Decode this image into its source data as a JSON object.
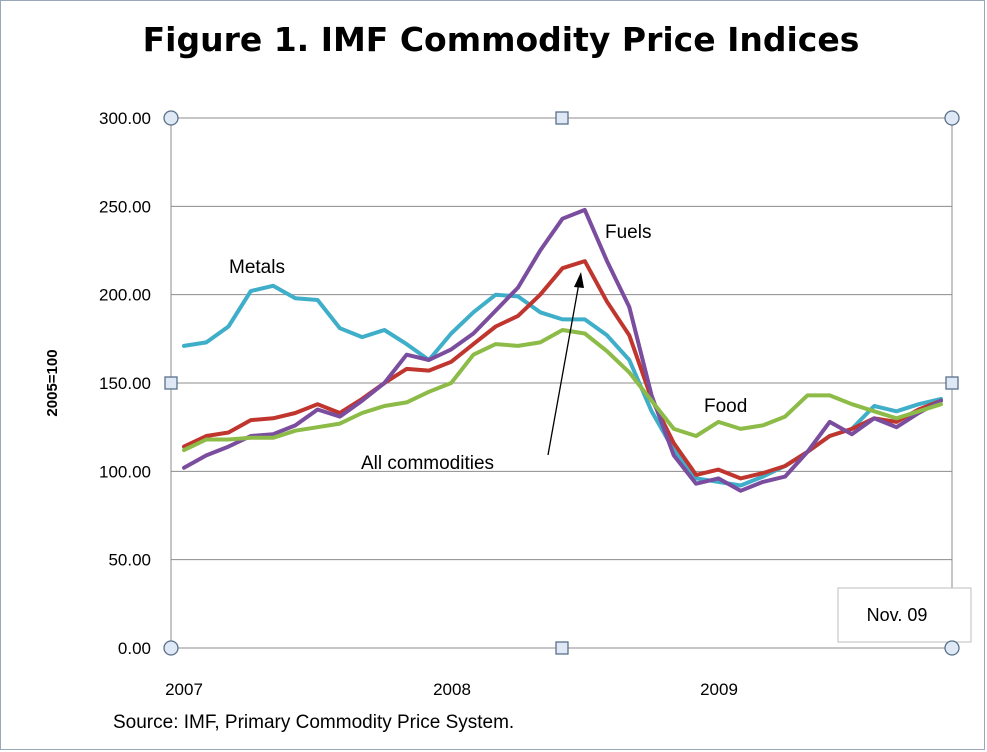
{
  "chart_data": {
    "type": "line",
    "title": "Figure 1. IMF Commodity Price Indices",
    "ylabel": "2005=100",
    "xlabel": "",
    "ylim": [
      0,
      300
    ],
    "yticks": [
      "0.00",
      "50.00",
      "100.00",
      "150.00",
      "200.00",
      "250.00",
      "300.00"
    ],
    "xticks": [
      "2007",
      "2008",
      "2009"
    ],
    "grid": "horizontal",
    "x": [
      "2007-01",
      "2007-02",
      "2007-03",
      "2007-04",
      "2007-05",
      "2007-06",
      "2007-07",
      "2007-08",
      "2007-09",
      "2007-10",
      "2007-11",
      "2007-12",
      "2008-01",
      "2008-02",
      "2008-03",
      "2008-04",
      "2008-05",
      "2008-06",
      "2008-07",
      "2008-08",
      "2008-09",
      "2008-10",
      "2008-11",
      "2008-12",
      "2009-01",
      "2009-02",
      "2009-03",
      "2009-04",
      "2009-05",
      "2009-06",
      "2009-07",
      "2009-08",
      "2009-09",
      "2009-10",
      "2009-11"
    ],
    "series": [
      {
        "name": "Metals",
        "color": "#3eaec9",
        "values": [
          171,
          173,
          182,
          202,
          205,
          198,
          197,
          181,
          176,
          180,
          172,
          163,
          178,
          190,
          200,
          199,
          190,
          186,
          186,
          177,
          163,
          134,
          112,
          96,
          94,
          92,
          97,
          103,
          111,
          120,
          124,
          137,
          134,
          138,
          141
        ]
      },
      {
        "name": "All commodities",
        "color": "#c0362f",
        "values": [
          114,
          120,
          122,
          129,
          130,
          133,
          138,
          133,
          141,
          150,
          158,
          157,
          162,
          172,
          182,
          188,
          200,
          215,
          219,
          196,
          177,
          141,
          116,
          98,
          101,
          96,
          99,
          103,
          111,
          120,
          124,
          130,
          128,
          135,
          140
        ]
      },
      {
        "name": "Fuels",
        "color": "#7b4d9e",
        "values": [
          102,
          109,
          114,
          120,
          121,
          126,
          135,
          131,
          140,
          150,
          166,
          163,
          169,
          178,
          191,
          204,
          225,
          243,
          248,
          219,
          193,
          143,
          109,
          93,
          96,
          89,
          94,
          97,
          111,
          128,
          121,
          130,
          125,
          133,
          140
        ]
      },
      {
        "name": "Food",
        "color": "#8dbb47",
        "values": [
          112,
          118,
          118,
          119,
          119,
          123,
          125,
          127,
          133,
          137,
          139,
          145,
          150,
          166,
          172,
          171,
          173,
          180,
          178,
          168,
          156,
          140,
          124,
          120,
          128,
          124,
          126,
          131,
          143,
          143,
          138,
          134,
          130,
          134,
          138
        ]
      }
    ],
    "annotations": {
      "metals": "Metals",
      "fuels": "Fuels",
      "food": "Food",
      "all": "All commodities"
    },
    "note": "Nov. 09",
    "source": "Source: IMF, Primary Commodity Price System."
  }
}
